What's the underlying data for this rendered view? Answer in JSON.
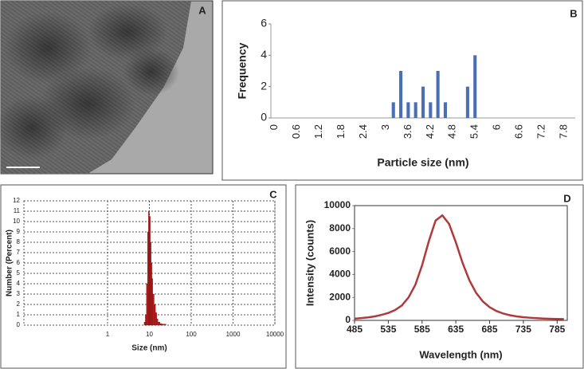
{
  "image": {
    "label": "A"
  },
  "chart_data": [
    {
      "type": "bar",
      "label": "B",
      "ylabel": "Frequency",
      "xlabel": "Particle size (nm)",
      "color": "#4a6fb5",
      "categories": [
        "0",
        null,
        null,
        "0.6",
        null,
        null,
        "1.2",
        null,
        null,
        "1.8",
        null,
        null,
        "2.4",
        null,
        null,
        "3",
        null,
        null,
        "3.6",
        null,
        null,
        "4.2",
        null,
        null,
        "4.8",
        null,
        null,
        "5.4",
        null,
        null,
        "6",
        null,
        null,
        "6.6",
        null,
        null,
        "7.2",
        null,
        null,
        "7.8",
        null
      ],
      "values": [
        0,
        0,
        0,
        0,
        0,
        0,
        0,
        0,
        0,
        0,
        0,
        0,
        0,
        0,
        0,
        0,
        1,
        3,
        1,
        1,
        2,
        1,
        3,
        1,
        0,
        0,
        2,
        4,
        0,
        0,
        0,
        0,
        0,
        0,
        0,
        0,
        0,
        0,
        0,
        0,
        0
      ],
      "ylim": [
        0,
        6
      ],
      "yticks": [
        0,
        2,
        4,
        6
      ]
    },
    {
      "type": "histogram",
      "label": "C",
      "ylabel": "Number (Percent)",
      "xlabel": "Size (nm)",
      "color": "#b22222",
      "log_x": true,
      "grid": true,
      "bins": [
        7.5,
        8,
        8.5,
        9,
        9.5,
        10,
        10.5,
        11,
        11.5,
        12,
        13,
        14,
        15,
        16,
        18,
        20,
        25
      ],
      "values": [
        0.3,
        1,
        4,
        9,
        11,
        10.5,
        8,
        6,
        4.5,
        3,
        2,
        1.2,
        0.6,
        0.3,
        0.15,
        0.1
      ],
      "xlim": [
        0.01,
        10000
      ],
      "xticks": [
        1,
        10,
        100,
        1000,
        10000
      ],
      "ylim": [
        0,
        12
      ],
      "yticks": [
        0,
        1,
        2,
        3,
        4,
        5,
        6,
        7,
        8,
        9,
        10,
        11,
        12
      ]
    },
    {
      "type": "line",
      "label": "D",
      "ylabel": "Intensity (counts)",
      "xlabel": "Wavelength (nm)",
      "color": "#b03a3a",
      "x": [
        485,
        495,
        505,
        515,
        525,
        535,
        545,
        555,
        565,
        575,
        585,
        595,
        605,
        615,
        625,
        635,
        645,
        655,
        665,
        675,
        685,
        695,
        705,
        715,
        725,
        735,
        745,
        755,
        765,
        775,
        785,
        795
      ],
      "values": [
        150,
        200,
        260,
        350,
        480,
        650,
        900,
        1300,
        2000,
        3100,
        4800,
        6900,
        8700,
        9150,
        8400,
        6800,
        5000,
        3500,
        2400,
        1650,
        1150,
        820,
        600,
        450,
        350,
        280,
        230,
        190,
        160,
        140,
        125,
        110
      ],
      "xlim": [
        485,
        800
      ],
      "xticks": [
        485,
        535,
        585,
        635,
        685,
        735,
        785
      ],
      "ylim": [
        0,
        10000
      ],
      "yticks": [
        0,
        2000,
        4000,
        6000,
        8000,
        10000
      ]
    }
  ]
}
